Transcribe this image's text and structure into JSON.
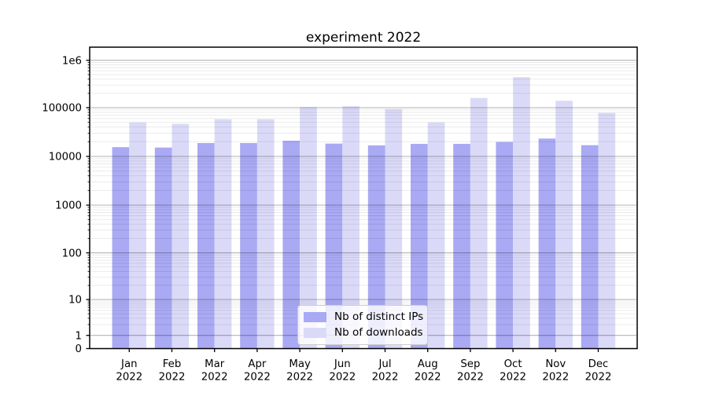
{
  "chart_data": {
    "type": "bar",
    "title": "experiment 2022",
    "categories": [
      "Jan",
      "Feb",
      "Mar",
      "Apr",
      "May",
      "Jun",
      "Jul",
      "Aug",
      "Sep",
      "Oct",
      "Nov",
      "Dec"
    ],
    "category_year": "2022",
    "series": [
      {
        "name": "Nb of distinct IPs",
        "color": "#a9a9f4",
        "values": [
          15500,
          15200,
          18800,
          18800,
          21000,
          18300,
          16800,
          18100,
          18100,
          19800,
          23200,
          17000
        ]
      },
      {
        "name": "Nb of downloads",
        "color": "#dadaf8",
        "values": [
          50000,
          46500,
          58000,
          58000,
          103000,
          107000,
          94000,
          50000,
          160000,
          440000,
          140000,
          78000
        ]
      }
    ],
    "xlabel": "",
    "ylabel": "",
    "yscale": "symlog",
    "ylim": [
      0,
      1900000
    ],
    "ytick_values": [
      0,
      1,
      10,
      100,
      1000,
      10000,
      100000,
      1000000
    ],
    "ytick_labels": [
      "0",
      "1",
      "10",
      "100",
      "1000",
      "10000",
      "100000",
      "1e6"
    ],
    "grid": {
      "major": true,
      "minor": true
    },
    "legend": {
      "position": "lower center"
    }
  }
}
